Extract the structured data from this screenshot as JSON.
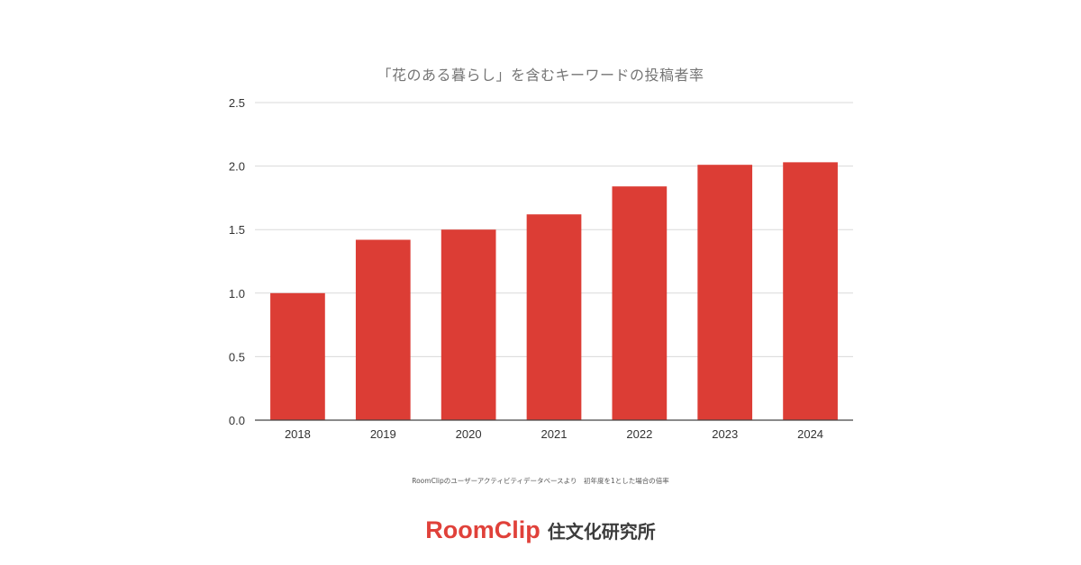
{
  "chart_data": {
    "type": "bar",
    "title": "「花のある暮らし」を含むキーワードの投稿者率",
    "categories": [
      "2018",
      "2019",
      "2020",
      "2021",
      "2022",
      "2023",
      "2024"
    ],
    "values": [
      1.0,
      1.42,
      1.5,
      1.62,
      1.84,
      2.01,
      2.03
    ],
    "ylim": [
      0,
      2.5
    ],
    "yticks": [
      "0.0",
      "0.5",
      "1.0",
      "1.5",
      "2.0",
      "2.5"
    ],
    "xlabel": "",
    "ylabel": "",
    "grid": true,
    "bar_color": "#dc3d35"
  },
  "footnote": "RoomClipのユーザーアクティビティデータベースより　初年度を1とした場合の倍率",
  "logo": {
    "brand": "RoomClip",
    "sub": "住文化研究所",
    "color": "#e0413a"
  }
}
